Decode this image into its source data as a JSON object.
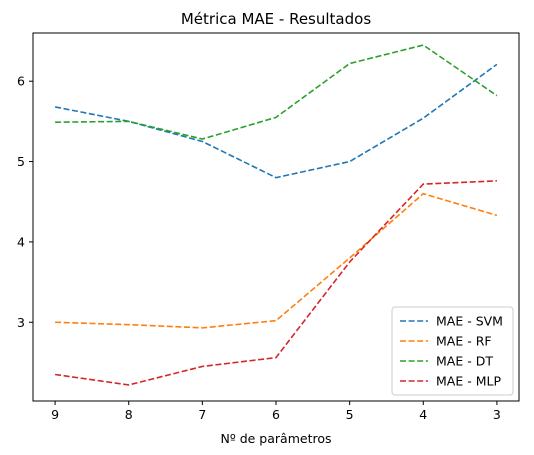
{
  "chart_data": {
    "type": "line",
    "title": "Métrica MAE - Resultados",
    "xlabel": "Nº de parâmetros",
    "ylabel": "",
    "x": [
      9,
      8,
      7,
      6,
      5,
      4,
      3
    ],
    "x_tick_labels": [
      "9",
      "8",
      "7",
      "6",
      "5",
      "4",
      "3"
    ],
    "xlim": [
      9.3,
      2.7
    ],
    "ylim": [
      2.02,
      6.6
    ],
    "y_ticks": [
      3,
      4,
      5,
      6
    ],
    "y_tick_labels": [
      "3",
      "4",
      "5",
      "6"
    ],
    "grid": false,
    "legend_position": "lower-right",
    "line_style": "dashed",
    "series": [
      {
        "name": "MAE - SVM",
        "color": "#1f77b4",
        "values": [
          5.68,
          5.5,
          5.25,
          4.8,
          5.0,
          5.54,
          6.21
        ]
      },
      {
        "name": "MAE - RF",
        "color": "#ff7f0e",
        "values": [
          3.0,
          2.97,
          2.93,
          3.02,
          3.8,
          4.6,
          4.33
        ]
      },
      {
        "name": "MAE - DT",
        "color": "#2ca02c",
        "values": [
          5.49,
          5.5,
          5.28,
          5.55,
          6.22,
          6.45,
          5.82
        ]
      },
      {
        "name": "MAE - MLP",
        "color": "#d62728",
        "values": [
          2.35,
          2.22,
          2.45,
          2.56,
          3.75,
          4.72,
          4.76
        ]
      }
    ]
  }
}
